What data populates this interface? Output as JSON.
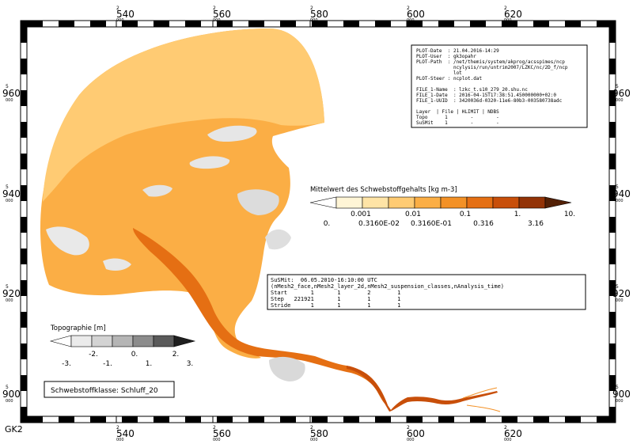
{
  "grid": {
    "x_ticks": [
      {
        "top": "2",
        "mid": "540",
        "bot": "000"
      },
      {
        "top": "2",
        "mid": "560",
        "bot": "000"
      },
      {
        "top": "2",
        "mid": "580",
        "bot": "000"
      },
      {
        "top": "2",
        "mid": "600",
        "bot": "000"
      },
      {
        "top": "2",
        "mid": "620",
        "bot": "000"
      }
    ],
    "y_ticks": [
      {
        "top": "5",
        "mid": "960",
        "bot": "000"
      },
      {
        "top": "5",
        "mid": "940",
        "bot": "000"
      },
      {
        "top": "5",
        "mid": "920",
        "bot": "000"
      },
      {
        "top": "5",
        "mid": "900",
        "bot": "000"
      }
    ],
    "crs_label": "GK2"
  },
  "plot_info": {
    "lines": [
      "PLOT-Date  : 21.04.2016-14:29",
      "PLOT-User  : gk3opahr",
      "PLOT-Path  : /net/themis/system/akprog/acsspimes/ncp",
      "             ncylysis/run/untrim2007/LZKC/nc/2D_f/ncp",
      "             lot",
      "PLOT-Steer : ncplot.dat",
      "",
      "FILE_1-Name  : lzkc_t.s10_279_20.shu.nc",
      "FILE_1-Date  : 2016-04-15T17:38:51.450000000+02:0",
      "FILE_1-UUID  : 3420036d-0320-11e6-80b3-003580738adc",
      "",
      "Layer  | File | HLIMIT | NDBS",
      "Topo      1        -        -",
      "SuSMit    1        -        -"
    ]
  },
  "conc_legend": {
    "title": "Mittelwert des Schwebstoffgehalts [kg m-3]",
    "colors": [
      "#ffffff",
      "#fff5d6",
      "#ffe4a6",
      "#ffcb73",
      "#fbae45",
      "#f39126",
      "#e56f13",
      "#c84f0a",
      "#933307",
      "#532006"
    ],
    "labels_upper": [
      "0.001",
      "0.01",
      "0.1",
      "1.",
      "10."
    ],
    "labels_lower": [
      "0.",
      "0.3160E-02",
      "0.3160E-01",
      "0.316",
      "3.16"
    ]
  },
  "time_info": {
    "lines": [
      "SuSMit:  06.05.2010-16:10:00 UTC",
      "(nMesh2_face,nMesh2_layer_2d,nMesh2_suspension_classes,nAnalysis_time)",
      "Start       1       1        2        1",
      "Step   221921       1        1        1",
      "Stride      1       1        1        1"
    ]
  },
  "topo_legend": {
    "title": "Topographie [m]",
    "colors": [
      "#ffffff",
      "#ebebeb",
      "#d3d3d3",
      "#b5b5b5",
      "#8c8c8c",
      "#5a5a5a",
      "#1f1f1f"
    ],
    "labels_lower": [
      "-3.",
      "-1.",
      "1.",
      "3."
    ],
    "labels_upper": [
      "-2.",
      "0.",
      "2."
    ]
  },
  "class_label": "Schwebstoffklasse: Schluff_20"
}
